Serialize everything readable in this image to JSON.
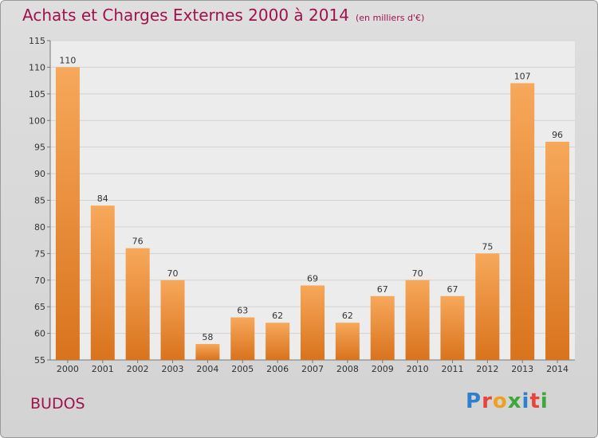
{
  "header": {
    "title": "Achats et Charges Externes 2000 à 2014",
    "subtitle": "(en milliers d'€)"
  },
  "footer": {
    "place": "BUDOS",
    "logo": [
      "P",
      "r",
      "o",
      "x",
      "i",
      "t",
      "i"
    ]
  },
  "colors": {
    "title": "#a0124d",
    "bar_top": "#f7a85a",
    "bar_bottom": "#d9731d",
    "plot_bg": "#ececec",
    "logo": [
      "#2f7fcf",
      "#e8443a",
      "#f0a020",
      "#3aa83a",
      "#2f7fcf",
      "#e8443a",
      "#3aa83a"
    ]
  },
  "chart_data": {
    "type": "bar",
    "title": "Achats et Charges Externes 2000 à 2014",
    "subtitle": "(en milliers d'€)",
    "categories": [
      "2000",
      "2001",
      "2002",
      "2003",
      "2004",
      "2005",
      "2006",
      "2007",
      "2008",
      "2009",
      "2010",
      "2011",
      "2012",
      "2013",
      "2014"
    ],
    "values": [
      110,
      84,
      76,
      70,
      58,
      63,
      62,
      69,
      62,
      67,
      70,
      67,
      75,
      107,
      96
    ],
    "ylim": [
      55,
      115
    ],
    "yticks": [
      55,
      60,
      65,
      70,
      75,
      80,
      85,
      90,
      95,
      100,
      105,
      110,
      115
    ],
    "grid": true,
    "xlabel": "",
    "ylabel": ""
  }
}
